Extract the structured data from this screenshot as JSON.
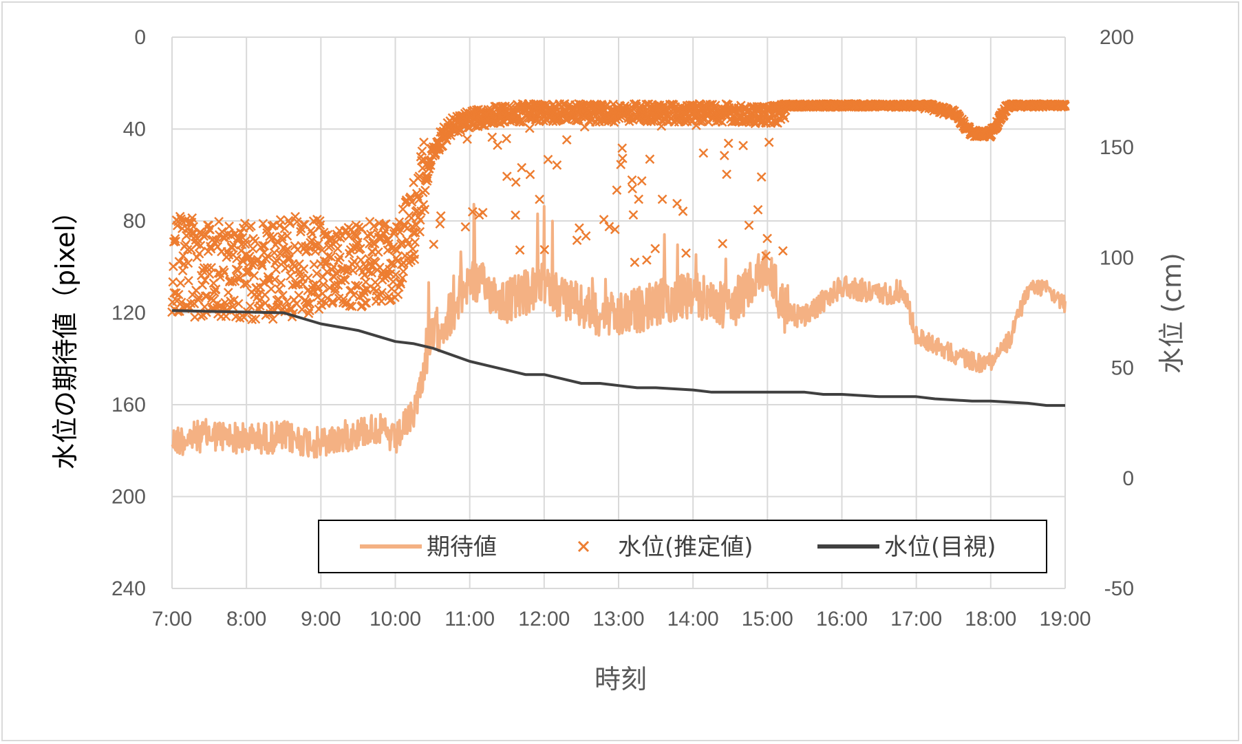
{
  "chart_data": {
    "type": "line",
    "xlabel": "時刻",
    "ylabel_left": "水位の期待値（pixel）",
    "ylabel_right": "水位 (cm)",
    "x_ticks": [
      "7:00",
      "8:00",
      "9:00",
      "10:00",
      "11:00",
      "12:00",
      "13:00",
      "14:00",
      "15:00",
      "16:00",
      "17:00",
      "18:00",
      "19:00"
    ],
    "y_left_ticks": [
      "0",
      "40",
      "80",
      "120",
      "160",
      "200",
      "240"
    ],
    "y_right_ticks": [
      "200",
      "150",
      "100",
      "50",
      "0",
      "-50"
    ],
    "y_left_range": [
      0,
      240
    ],
    "y_left_reversed": true,
    "y_right_range": [
      -50,
      200
    ],
    "grid": true,
    "legend_position": "bottom-right inside",
    "series": [
      {
        "name": "期待値",
        "axis": "left",
        "style": "line",
        "color": "#f4b183",
        "x": [
          "7:00",
          "7:30",
          "8:00",
          "8:30",
          "9:00",
          "9:30",
          "9:45",
          "10:00",
          "10:15",
          "10:30",
          "10:45",
          "11:00",
          "11:15",
          "11:30",
          "12:00",
          "12:30",
          "13:00",
          "13:30",
          "14:00",
          "14:30",
          "15:00",
          "15:15",
          "15:30",
          "16:00",
          "16:30",
          "16:50",
          "17:00",
          "17:30",
          "17:50",
          "18:00",
          "18:15",
          "18:30",
          "18:45",
          "19:00"
        ],
        "values": [
          176,
          173,
          175,
          174,
          177,
          172,
          170,
          176,
          163,
          130,
          120,
          105,
          110,
          115,
          108,
          118,
          122,
          116,
          112,
          118,
          100,
          120,
          122,
          108,
          112,
          110,
          130,
          138,
          142,
          141,
          132,
          110,
          108,
          117
        ]
      },
      {
        "name": "水位(推定値)",
        "axis": "left",
        "style": "scatter",
        "color": "#ed7d31",
        "x": [
          "7:00",
          "7:30",
          "8:00",
          "8:30",
          "9:00",
          "9:15",
          "9:30",
          "9:45",
          "10:00",
          "10:15",
          "10:30",
          "10:45",
          "11:00",
          "11:30",
          "12:00",
          "12:30",
          "13:00",
          "13:30",
          "14:00",
          "14:30",
          "15:00",
          "15:15",
          "16:00",
          "17:00",
          "17:30",
          "17:45",
          "18:00",
          "18:15",
          "18:30",
          "19:00"
        ],
        "values": [
          100,
          100,
          103,
          100,
          100,
          98,
          100,
          97,
          98,
          80,
          45,
          35,
          32,
          29,
          29,
          29,
          29,
          29,
          29,
          29,
          30,
          29,
          29,
          29,
          33,
          42,
          42,
          29,
          29,
          29
        ]
      },
      {
        "name": "水位(目視)",
        "axis": "right",
        "style": "line",
        "color": "#404040",
        "x": [
          "7:00",
          "8:30",
          "9:00",
          "9:30",
          "10:00",
          "10:15",
          "10:30",
          "11:00",
          "11:15",
          "11:30",
          "11:45",
          "12:00",
          "12:15",
          "12:30",
          "12:45",
          "13:00",
          "13:15",
          "13:30",
          "14:00",
          "14:15",
          "14:30",
          "15:00",
          "15:30",
          "15:45",
          "16:00",
          "16:30",
          "17:00",
          "17:15",
          "17:45",
          "18:00",
          "18:30",
          "18:45",
          "19:00"
        ],
        "values": [
          76,
          75,
          70,
          67,
          62,
          61,
          59,
          53,
          51,
          49,
          47,
          47,
          45,
          43,
          43,
          42,
          41,
          41,
          40,
          39,
          39,
          39,
          39,
          38,
          38,
          37,
          37,
          36,
          35,
          35,
          34,
          33,
          33
        ]
      }
    ]
  }
}
